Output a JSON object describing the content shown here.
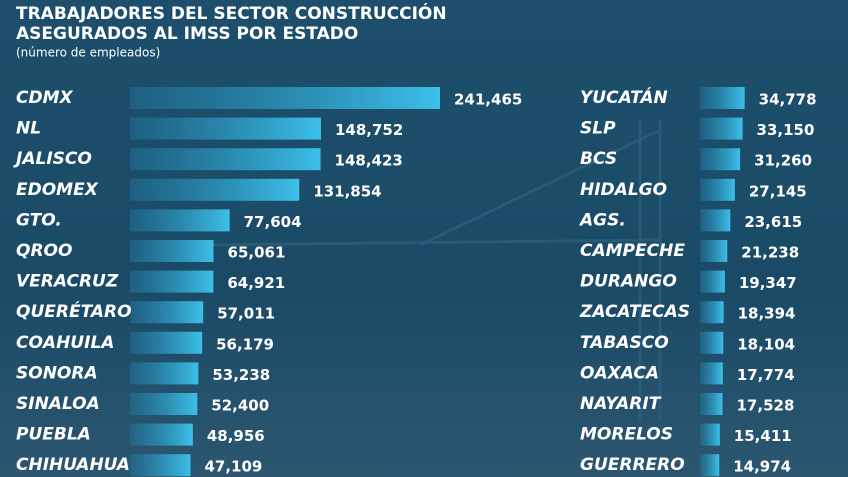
{
  "title": "TRABAJADORES DEL SECTOR CONSTRUCCIÓN ASEGURADOS AL IMSS POR ESTADO",
  "subtitle": "(número de empleados)",
  "chart_data": [
    {
      "type": "bar",
      "orientation": "horizontal",
      "color": "#33b5e0",
      "categories": [
        "CDMX",
        "NL",
        "JALISCO",
        "EDOMEX",
        "GTO.",
        "QROO",
        "VERACRUZ",
        "QUERÉTARO",
        "COAHUILA",
        "SONORA",
        "SINALOA",
        "PUEBLA",
        "CHIHUAHUA"
      ],
      "values": [
        241465,
        148752,
        148423,
        131854,
        77604,
        65061,
        64921,
        57011,
        56179,
        53238,
        52400,
        48956,
        47109
      ],
      "value_labels": [
        "241,465",
        "148,752",
        "148,423",
        "131,854",
        "77,604",
        "65,061",
        "64,921",
        "57,011",
        "56,179",
        "53,238",
        "52,400",
        "48,956",
        "47,109"
      ]
    },
    {
      "type": "bar",
      "orientation": "horizontal",
      "color": "#33b5e0",
      "categories": [
        "YUCATÁN",
        "SLP",
        "BCS",
        "HIDALGO",
        "AGS.",
        "CAMPECHE",
        "DURANGO",
        "ZACATECAS",
        "TABASCO",
        "OAXACA",
        "NAYARIT",
        "MORELOS",
        "GUERRERO"
      ],
      "values": [
        34778,
        33150,
        31260,
        27145,
        23615,
        21238,
        19347,
        18394,
        18104,
        17774,
        17528,
        15411,
        14974
      ],
      "value_labels": [
        "34,778",
        "33,150",
        "31,260",
        "27,145",
        "23,615",
        "21,238",
        "19,347",
        "18,394",
        "18,104",
        "17,774",
        "17,528",
        "15,411",
        "14,974"
      ]
    }
  ]
}
